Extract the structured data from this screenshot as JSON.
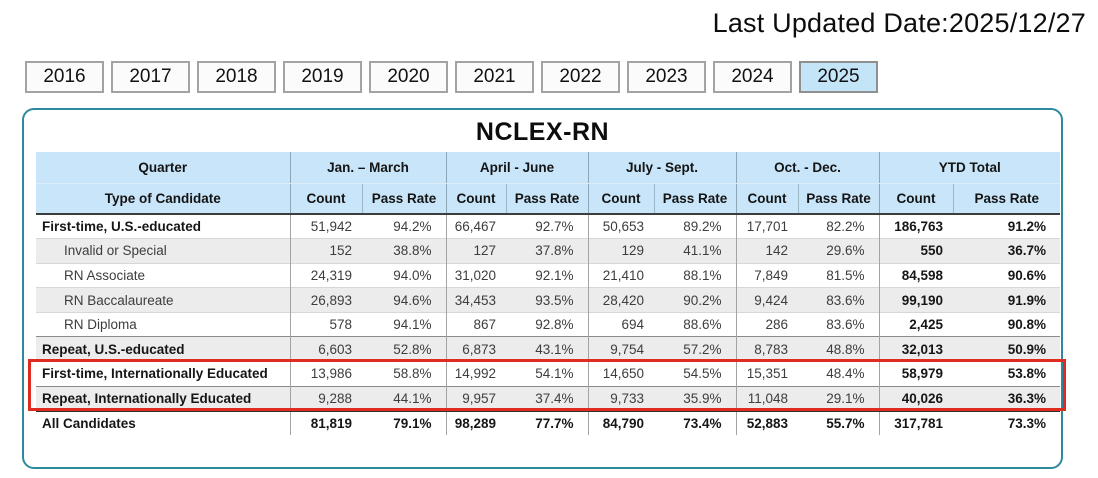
{
  "page": {
    "last_updated": "Last Updated Date:2025/12/27"
  },
  "year_tabs": {
    "years": [
      "2016",
      "2017",
      "2018",
      "2019",
      "2020",
      "2021",
      "2022",
      "2023",
      "2024",
      "2025"
    ],
    "active": "2025"
  },
  "table": {
    "title": "NCLEX-RN",
    "header": {
      "quarter_label": "Quarter",
      "type_label": "Type of Candidate",
      "groups": [
        "Jan. – March",
        "April - June",
        "July - Sept.",
        "Oct. - Dec.",
        "YTD Total"
      ],
      "count_label": "Count",
      "pass_label": "Pass Rate"
    },
    "rows": [
      {
        "label": "First-time, U.S.-educated",
        "style": "section",
        "values": [
          "51,942",
          "94.2%",
          "66,467",
          "92.7%",
          "50,653",
          "89.2%",
          "17,701",
          "82.2%",
          "186,763",
          "91.2%"
        ]
      },
      {
        "label": "Invalid or Special",
        "style": "sub",
        "values": [
          "152",
          "38.8%",
          "127",
          "37.8%",
          "129",
          "41.1%",
          "142",
          "29.6%",
          "550",
          "36.7%"
        ]
      },
      {
        "label": "RN Associate",
        "style": "sub",
        "values": [
          "24,319",
          "94.0%",
          "31,020",
          "92.1%",
          "21,410",
          "88.1%",
          "7,849",
          "81.5%",
          "84,598",
          "90.6%"
        ]
      },
      {
        "label": "RN Baccalaureate",
        "style": "sub",
        "values": [
          "26,893",
          "94.6%",
          "34,453",
          "93.5%",
          "28,420",
          "90.2%",
          "9,424",
          "83.6%",
          "99,190",
          "91.9%"
        ]
      },
      {
        "label": "RN Diploma",
        "style": "sub",
        "values": [
          "578",
          "94.1%",
          "867",
          "92.8%",
          "694",
          "88.6%",
          "286",
          "83.6%",
          "2,425",
          "90.8%"
        ]
      },
      {
        "label": "Repeat, U.S.-educated",
        "style": "section",
        "values": [
          "6,603",
          "52.8%",
          "6,873",
          "43.1%",
          "9,754",
          "57.2%",
          "8,783",
          "48.8%",
          "32,013",
          "50.9%"
        ]
      },
      {
        "label": "First-time, Internationally Educated",
        "style": "section",
        "values": [
          "13,986",
          "58.8%",
          "14,992",
          "54.1%",
          "14,650",
          "54.5%",
          "15,351",
          "48.4%",
          "58,979",
          "53.8%"
        ]
      },
      {
        "label": "Repeat, Internationally Educated",
        "style": "section",
        "values": [
          "9,288",
          "44.1%",
          "9,957",
          "37.4%",
          "9,733",
          "35.9%",
          "11,048",
          "29.1%",
          "40,026",
          "36.3%"
        ]
      },
      {
        "label": "All Candidates",
        "style": "total",
        "values": [
          "81,819",
          "79.1%",
          "98,289",
          "77.7%",
          "84,790",
          "73.4%",
          "52,883",
          "55.7%",
          "317,781",
          "73.3%"
        ]
      }
    ]
  },
  "highlight": {
    "color": "#e02b20",
    "rows": [
      "First-time, Internationally Educated",
      "Repeat, Internationally Educated"
    ]
  }
}
